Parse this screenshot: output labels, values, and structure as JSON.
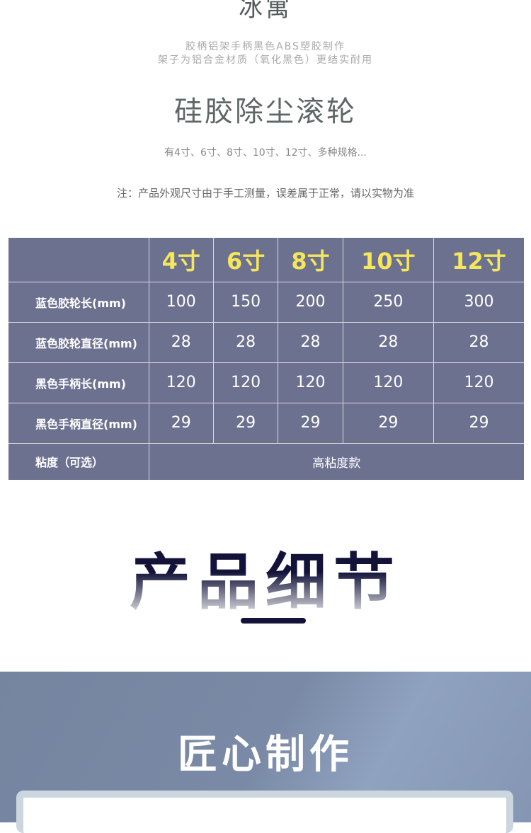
{
  "header": {
    "top_title": "冰寓",
    "desc_line1": "胶柄铝架手柄黑色ABS塑胶制作",
    "desc_line2": "架子为铝合金材质（氧化黑色）更结实耐用",
    "product_name": "硅胶除尘滚轮",
    "sizes_text": "有4寸、6寸、8寸、10寸、12寸、多种规格...",
    "note": "注：产品外观尺寸由于手工测量，误差属于正常，请以实物为准"
  },
  "spec_table": {
    "columns": [
      "4寸",
      "6寸",
      "8寸",
      "10寸",
      "12寸"
    ],
    "rows": [
      {
        "label": "蓝色胶轮长(mm)",
        "values": [
          "100",
          "150",
          "200",
          "250",
          "300"
        ]
      },
      {
        "label": "蓝色胶轮直径(mm)",
        "values": [
          "28",
          "28",
          "28",
          "28",
          "28"
        ]
      },
      {
        "label": "黑色手柄长(mm)",
        "values": [
          "120",
          "120",
          "120",
          "120",
          "120"
        ]
      },
      {
        "label": "黑色手柄直径(mm)",
        "values": [
          "29",
          "29",
          "29",
          "29",
          "29"
        ]
      }
    ],
    "viscosity": {
      "label": "粘度（可选）",
      "value": "高粘度款"
    }
  },
  "detail": {
    "title": "产品细节"
  },
  "craft": {
    "title": "匠心制作"
  },
  "colors": {
    "table_bg": "#6d7190",
    "header_text": "#f5e65a",
    "accent": "#13133a"
  }
}
